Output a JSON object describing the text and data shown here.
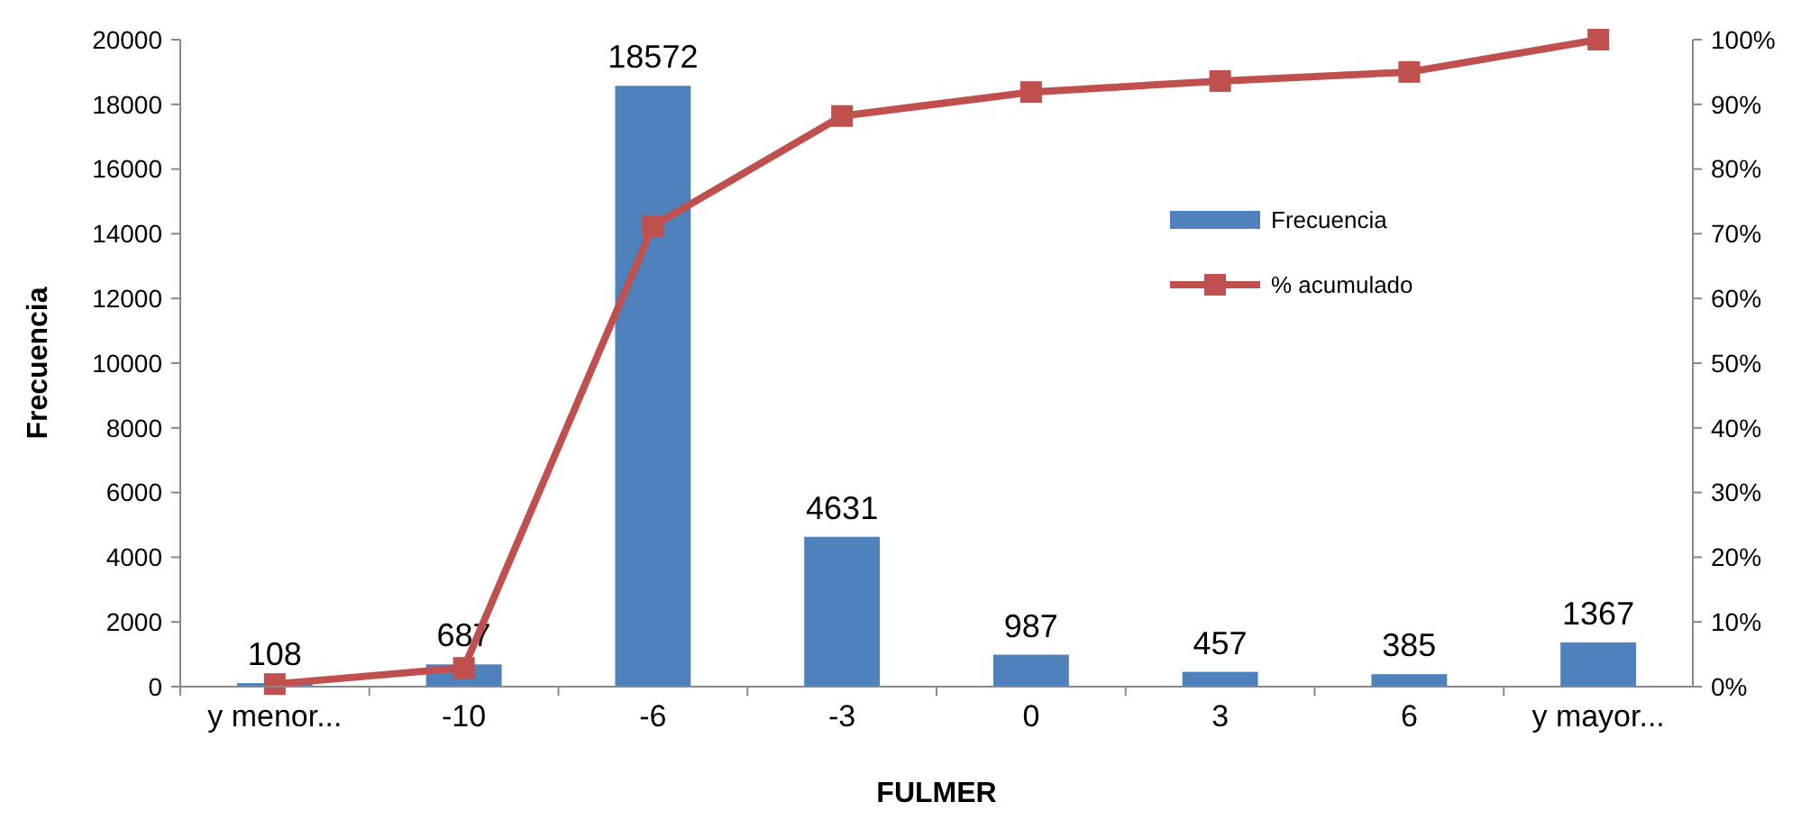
{
  "chart_data": {
    "type": "bar",
    "xlabel": "FULMER",
    "ylabel": "Frecuencia",
    "categories": [
      "y menor...",
      "-10",
      "-6",
      "-3",
      "0",
      "3",
      "6",
      "y mayor..."
    ],
    "series": [
      {
        "name": "Frecuencia",
        "color": "#4f81bd",
        "values": [
          108,
          687,
          18572,
          4631,
          987,
          457,
          385,
          1367
        ],
        "value_labels": [
          "108",
          "687",
          "18572",
          "4631",
          "987",
          "457",
          "385",
          "1367"
        ]
      },
      {
        "name": "% acumulado",
        "type": "line",
        "axis": "y2",
        "color": "#c0504d",
        "marker": "square",
        "line_style": "solid",
        "values": [
          0.4,
          2.9,
          71.2,
          88.2,
          91.9,
          93.6,
          95.0,
          100
        ]
      }
    ],
    "ylim": [
      0,
      20000
    ],
    "yticks": [
      0,
      2000,
      4000,
      6000,
      8000,
      10000,
      12000,
      14000,
      16000,
      18000,
      20000
    ],
    "y2lim": [
      0,
      100
    ],
    "y2ticks": [
      {
        "value": 0,
        "label": "0%"
      },
      {
        "value": 10,
        "label": "10%"
      },
      {
        "value": 20,
        "label": "20%"
      },
      {
        "value": 30,
        "label": "30%"
      },
      {
        "value": 40,
        "label": "40%"
      },
      {
        "value": 50,
        "label": "50%"
      },
      {
        "value": 60,
        "label": "60%"
      },
      {
        "value": 70,
        "label": "70%"
      },
      {
        "value": 80,
        "label": "80%"
      },
      {
        "value": 90,
        "label": "90%"
      },
      {
        "value": 100,
        "label": "100%"
      }
    ],
    "grid": false,
    "legend": "top right"
  }
}
